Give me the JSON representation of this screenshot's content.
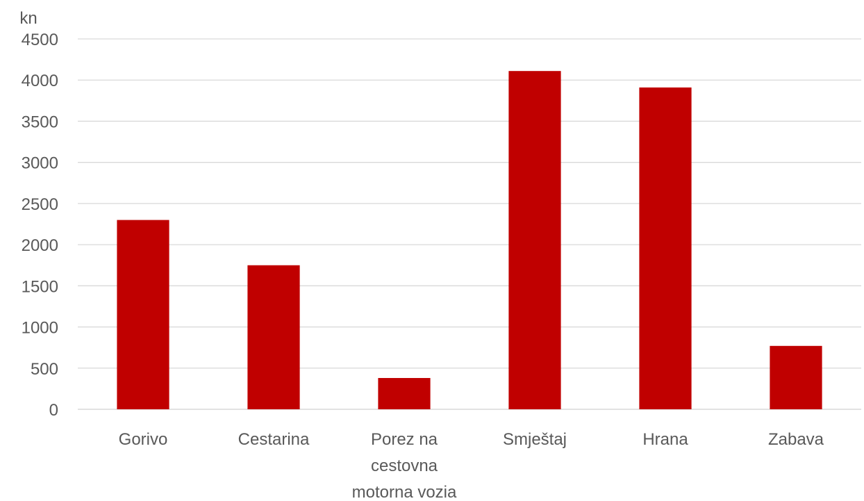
{
  "chart_data": {
    "type": "bar",
    "unit_label": "kn",
    "categories": [
      "Gorivo",
      "Cestarina",
      "Porez na cestovna motorna vozia",
      "Smještaj",
      "Hrana",
      "Zabava"
    ],
    "category_label_lines": [
      [
        "Gorivo"
      ],
      [
        "Cestarina"
      ],
      [
        "Porez na",
        "cestovna",
        "motorna vozia"
      ],
      [
        "Smještaj"
      ],
      [
        "Hrana"
      ],
      [
        "Zabava"
      ]
    ],
    "values": [
      2300,
      1750,
      380,
      4110,
      3910,
      770
    ],
    "ylim": [
      0,
      4500
    ],
    "yticks": [
      0,
      500,
      1000,
      1500,
      2000,
      2500,
      3000,
      3500,
      4000,
      4500
    ],
    "grid": true,
    "legend": "none",
    "bar_color": "#c00000"
  }
}
